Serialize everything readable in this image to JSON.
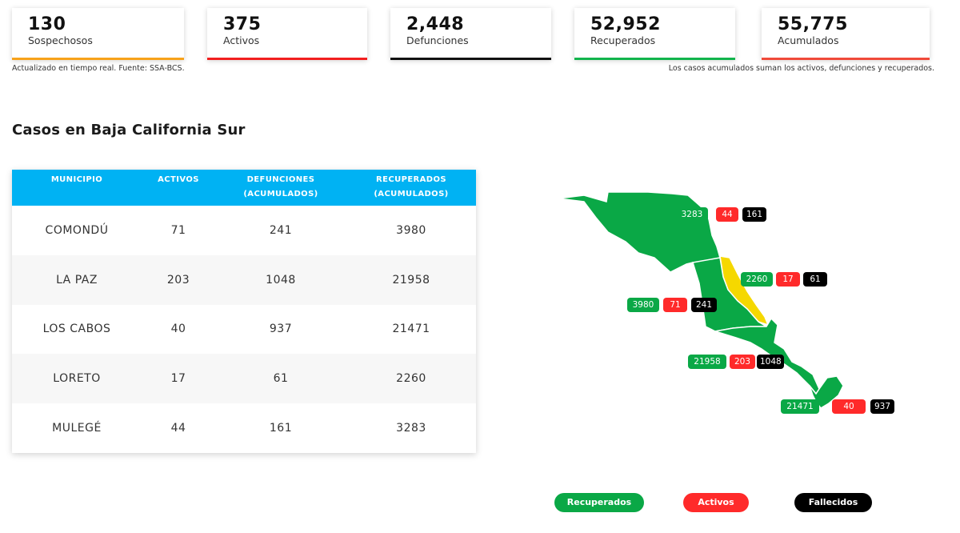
{
  "stats": [
    {
      "value": "130",
      "label": "Sospechosos",
      "color": "#f7a21b"
    },
    {
      "value": "375",
      "label": "Activos",
      "color": "#f21f1f"
    },
    {
      "value": "2,448",
      "label": "Defunciones",
      "color": "#111111"
    },
    {
      "value": "52,952",
      "label": "Recuperados",
      "color": "#12b44d"
    },
    {
      "value": "55,775",
      "label": "Acumulados",
      "color": "#f04a3a"
    }
  ],
  "notes": {
    "left": "Actualizado en tiempo real. Fuente: SSA-BCS.",
    "right": "Los casos acumulados suman los activos, defunciones y recuperados."
  },
  "section_title": "Casos en Baja California Sur",
  "table": {
    "headers": {
      "municipio": "MUNICIPIO",
      "activos": "ACTIVOS",
      "defunciones_1": "DEFUNCIONES",
      "defunciones_2": "(ACUMULADOS)",
      "recuperados_1": "RECUPERADOS",
      "recuperados_2": "(ACUMULADOS)"
    },
    "rows": [
      {
        "municipio": "COMONDÚ",
        "activos": "71",
        "defunciones": "241",
        "recuperados": "3980"
      },
      {
        "municipio": "LA PAZ",
        "activos": "203",
        "defunciones": "1048",
        "recuperados": "21958"
      },
      {
        "municipio": "LOS CABOS",
        "activos": "40",
        "defunciones": "937",
        "recuperados": "21471"
      },
      {
        "municipio": "LORETO",
        "activos": "17",
        "defunciones": "61",
        "recuperados": "2260"
      },
      {
        "municipio": "MULEGÉ",
        "activos": "44",
        "defunciones": "161",
        "recuperados": "3283"
      }
    ]
  },
  "map_tags": {
    "mulege": {
      "recuperados": "3283",
      "activos": "44",
      "fallecidos": "161"
    },
    "loreto": {
      "recuperados": "2260",
      "activos": "17",
      "fallecidos": "61"
    },
    "comondu": {
      "recuperados": "3980",
      "activos": "71",
      "fallecidos": "241"
    },
    "la_paz": {
      "recuperados": "21958",
      "activos": "203",
      "fallecidos": "1048"
    },
    "los_cabos": {
      "recuperados": "21471",
      "activos": "40",
      "fallecidos": "937"
    }
  },
  "map_colors": {
    "region": "#0aa846",
    "highlight": "#f5d800"
  },
  "legend": {
    "recuperados": "Recuperados",
    "activos": "Activos",
    "fallecidos": "Fallecidos"
  }
}
